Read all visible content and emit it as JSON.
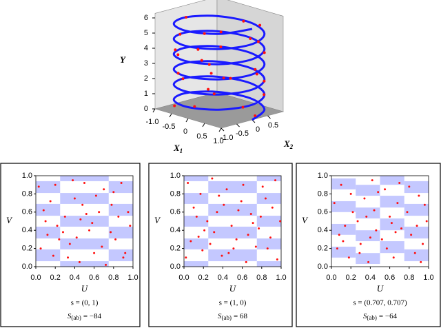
{
  "chart_data": [
    {
      "type": "helix3d",
      "axis_labels": {
        "y": "Y",
        "x1": "X",
        "x1_sub": "1",
        "x2": "X",
        "x2_sub": "2"
      },
      "x1lim": [
        -1,
        1
      ],
      "x2lim": [
        -1,
        1
      ],
      "ylim": [
        0,
        6.3
      ],
      "yticks": [
        0,
        1,
        2,
        3,
        4,
        5,
        6
      ],
      "x1ticks": [
        {
          "value": -1,
          "label": "-1.0"
        },
        -0.5,
        0,
        0.5,
        {
          "value": 1,
          "label": "1.0"
        }
      ],
      "x2ticks": [
        {
          "value": -1,
          "label": "-1.0"
        },
        -0.5,
        0,
        0.5
      ],
      "line": {
        "color": "#1a1aff",
        "x1": [
          1,
          0.707,
          0,
          -0.707,
          -1,
          -0.707,
          0,
          0.707,
          1,
          0.707,
          0,
          -0.707,
          -1,
          -0.707,
          0,
          0.707,
          1,
          0.707,
          0,
          -0.707,
          -1,
          -0.707,
          0,
          0.707,
          1,
          0.707,
          0,
          -0.707,
          -1,
          -0.707,
          0,
          0.707,
          1,
          0.707,
          0,
          -0.707,
          -1,
          -0.707,
          0,
          0.707,
          1,
          0.707,
          0,
          -0.707,
          -1,
          -0.707,
          0,
          0.707,
          1
        ],
        "x2": [
          0,
          0.707,
          1,
          0.707,
          0,
          -0.707,
          -1,
          -0.707,
          0,
          0.707,
          1,
          0.707,
          0,
          -0.707,
          -1,
          -0.707,
          0,
          0.707,
          1,
          0.707,
          0,
          -0.707,
          -1,
          -0.707,
          0,
          0.707,
          1,
          0.707,
          0,
          -0.707,
          -1,
          -0.707,
          0,
          0.707,
          1,
          0.707,
          0,
          -0.707,
          -1,
          -0.707,
          0,
          0.707,
          1,
          0.707,
          0,
          -0.707,
          -1,
          -0.707,
          0
        ],
        "y": [
          0,
          0.125,
          0.25,
          0.375,
          0.5,
          0.625,
          0.75,
          0.875,
          1,
          1.125,
          1.25,
          1.375,
          1.5,
          1.625,
          1.75,
          1.875,
          2,
          2.125,
          2.25,
          2.375,
          2.5,
          2.625,
          2.75,
          2.875,
          3,
          3.125,
          3.25,
          3.375,
          3.5,
          3.625,
          3.75,
          3.875,
          4,
          4.125,
          4.25,
          4.375,
          4.5,
          4.625,
          4.75,
          4.875,
          5,
          5.125,
          5.25,
          5.375,
          5.5,
          5.625,
          5.75,
          5.875,
          6
        ]
      },
      "points": {
        "color": "#ff1010",
        "x1": [
          0.9,
          -0.8,
          0.1,
          1.0,
          -0.5,
          -1.0,
          0.6,
          0.8,
          -0.9,
          0.2,
          -0.3,
          1.05,
          -0.7,
          -0.95,
          0.5,
          0.9,
          -0.6,
          -0.9,
          0.3,
          1.0,
          -0.2,
          -1.0,
          0.4,
          0.95,
          -0.6,
          0.7,
          -0.4,
          0.7,
          -0.8,
          0.1
        ],
        "x2": [
          0.2,
          0.5,
          -0.9,
          -0.3,
          0.9,
          -0.1,
          -0.8,
          0.6,
          0.4,
          0.95,
          -1.0,
          0.1,
          0.8,
          -0.4,
          -0.85,
          0.5,
          0.7,
          -0.3,
          -1.0,
          0.2,
          1.0,
          0.0,
          -0.9,
          0.3,
          -0.8,
          0.7,
          -0.9,
          -0.6,
          0.6,
          0.9
        ],
        "y": [
          0.1,
          0.6,
          0.8,
          1.0,
          1.3,
          1.5,
          1.9,
          2.1,
          2.5,
          2.3,
          2.8,
          3.0,
          3.3,
          3.6,
          3.8,
          4.1,
          4.4,
          4.6,
          4.75,
          5.05,
          5.2,
          5.5,
          5.8,
          6.05,
          0.35,
          1.1,
          3.9,
          2.9,
          1.6,
          4.3
        ]
      }
    },
    {
      "type": "scatter",
      "xlabel": "U",
      "ylabel": "V",
      "s_label": "s = (0, 1)",
      "stat": "S",
      "stat_sub": "(ab)",
      "stat_value": "= −84",
      "xlim": [
        0,
        1
      ],
      "ylim": [
        0,
        1
      ],
      "xticks": [
        {
          "value": 0,
          "label": "0.0"
        },
        0.2,
        0.4,
        0.6,
        0.8,
        {
          "value": 1,
          "label": "1.0"
        }
      ],
      "yticks": [
        {
          "value": 0,
          "label": "0.0"
        },
        0.2,
        0.4,
        0.6,
        0.8,
        {
          "value": 1,
          "label": "1.0"
        }
      ],
      "stripe_color": "#c4c8ff",
      "color": "#ff1010",
      "stripes": [
        {
          "x": [
            0,
            0.25
          ],
          "y": [
            [
              0.06,
              0.19
            ],
            [
              0.31,
              0.44
            ],
            [
              0.56,
              0.69
            ],
            [
              0.81,
              0.94
            ]
          ]
        },
        {
          "x": [
            0.25,
            0.75
          ],
          "y": [
            [
              0,
              0.06
            ],
            [
              0.19,
              0.31
            ],
            [
              0.44,
              0.56
            ],
            [
              0.69,
              0.81
            ],
            [
              0.94,
              1
            ]
          ]
        },
        {
          "x": [
            0.75,
            1
          ],
          "y": [
            [
              0.06,
              0.19
            ],
            [
              0.31,
              0.44
            ],
            [
              0.56,
              0.69
            ],
            [
              0.81,
              0.94
            ]
          ]
        }
      ],
      "x": [
        0.03,
        0.08,
        0.12,
        0.18,
        0.22,
        0.05,
        0.15,
        0.2,
        0.1,
        0.24,
        0.3,
        0.35,
        0.4,
        0.45,
        0.5,
        0.55,
        0.6,
        0.65,
        0.7,
        0.33,
        0.42,
        0.48,
        0.58,
        0.68,
        0.38,
        0.52,
        0.62,
        0.28,
        0.72,
        0.46,
        0.78,
        0.82,
        0.88,
        0.92,
        0.97,
        0.8,
        0.85,
        0.9,
        0.95,
        0.77
      ],
      "y": [
        0.88,
        0.62,
        0.35,
        0.12,
        0.45,
        0.2,
        0.72,
        0.9,
        0.5,
        0.3,
        0.55,
        0.25,
        0.75,
        0.05,
        0.92,
        0.4,
        0.15,
        0.6,
        0.85,
        0.1,
        0.32,
        0.68,
        0.48,
        0.22,
        0.95,
        0.58,
        0.78,
        0.38,
        0.02,
        0.52,
        0.68,
        0.3,
        0.92,
        0.15,
        0.45,
        0.82,
        0.55,
        0.1,
        0.6,
        0.38
      ]
    },
    {
      "type": "scatter",
      "xlabel": "U",
      "ylabel": "V",
      "s_label": "s = (1, 0)",
      "stat": "S",
      "stat_sub": "(ab)",
      "stat_value": "= 68",
      "xlim": [
        0,
        1
      ],
      "ylim": [
        0,
        1
      ],
      "xticks": [
        {
          "value": 0,
          "label": "0.0"
        },
        0.2,
        0.4,
        0.6,
        0.8,
        {
          "value": 1,
          "label": "1.0"
        }
      ],
      "yticks": [
        {
          "value": 0,
          "label": "0.0"
        },
        0.2,
        0.4,
        0.6,
        0.8,
        {
          "value": 1,
          "label": "1.0"
        }
      ],
      "stripe_color": "#c4c8ff",
      "color": "#ff1010",
      "stripes": [
        {
          "x": [
            0,
            0.25
          ],
          "y": [
            [
              0,
              0.06
            ],
            [
              0.19,
              0.31
            ],
            [
              0.44,
              0.56
            ],
            [
              0.69,
              0.81
            ],
            [
              0.94,
              1
            ]
          ]
        },
        {
          "x": [
            0.25,
            0.75
          ],
          "y": [
            [
              0.06,
              0.19
            ],
            [
              0.31,
              0.44
            ],
            [
              0.56,
              0.69
            ],
            [
              0.81,
              0.94
            ]
          ]
        },
        {
          "x": [
            0.75,
            1
          ],
          "y": [
            [
              0,
              0.06
            ],
            [
              0.19,
              0.31
            ],
            [
              0.44,
              0.56
            ],
            [
              0.69,
              0.81
            ],
            [
              0.94,
              1
            ]
          ]
        }
      ],
      "x": [
        0.02,
        0.07,
        0.13,
        0.17,
        0.21,
        0.1,
        0.04,
        0.19,
        0.24,
        0.15,
        0.29,
        0.34,
        0.39,
        0.44,
        0.49,
        0.54,
        0.59,
        0.64,
        0.69,
        0.74,
        0.31,
        0.41,
        0.51,
        0.61,
        0.71,
        0.36,
        0.46,
        0.56,
        0.66,
        0.27,
        0.77,
        0.81,
        0.86,
        0.91,
        0.96,
        0.79,
        0.84,
        0.89,
        0.94,
        0.99
      ],
      "y": [
        0.1,
        0.28,
        0.55,
        0.8,
        0.4,
        0.65,
        0.92,
        0.18,
        0.5,
        0.33,
        0.97,
        0.6,
        0.12,
        0.85,
        0.45,
        0.3,
        0.72,
        0.05,
        0.58,
        0.22,
        0.38,
        0.68,
        0.2,
        0.9,
        0.48,
        0.78,
        0.15,
        0.62,
        0.35,
        0.25,
        0.42,
        0.88,
        0.2,
        0.65,
        0.08,
        0.55,
        0.75,
        0.32,
        0.95,
        0.5
      ]
    },
    {
      "type": "scatter",
      "xlabel": "U",
      "ylabel": "V",
      "s_label": "s = (0.707, 0.707)",
      "stat": "S",
      "stat_sub": "(ab)",
      "stat_value": "= −64",
      "xlim": [
        0,
        1
      ],
      "ylim": [
        0,
        1
      ],
      "xticks": [
        {
          "value": 0,
          "label": "0.0"
        },
        0.2,
        0.4,
        0.6,
        0.8,
        {
          "value": 1,
          "label": "1.0"
        }
      ],
      "yticks": [
        {
          "value": 0,
          "label": "0.0"
        },
        0.2,
        0.4,
        0.6,
        0.8,
        {
          "value": 1,
          "label": "1.0"
        }
      ],
      "stripe_color": "#c4c8ff",
      "color": "#ff1010",
      "stripes": [
        {
          "x": [
            0,
            0.25
          ],
          "y": [
            [
              0.1,
              0.22
            ],
            [
              0.35,
              0.47
            ],
            [
              0.6,
              0.72
            ],
            [
              0.85,
              0.97
            ]
          ]
        },
        {
          "x": [
            0.25,
            0.5
          ],
          "y": [
            [
              0.03,
              0.15
            ],
            [
              0.28,
              0.4
            ],
            [
              0.53,
              0.65
            ],
            [
              0.78,
              0.9
            ]
          ]
        },
        {
          "x": [
            0.5,
            0.75
          ],
          "y": [
            [
              0.15,
              0.28
            ],
            [
              0.4,
              0.53
            ],
            [
              0.65,
              0.78
            ],
            [
              0.9,
              1
            ]
          ]
        },
        {
          "x": [
            0.75,
            1
          ],
          "y": [
            [
              0.06,
              0.19
            ],
            [
              0.31,
              0.44
            ],
            [
              0.56,
              0.69
            ],
            [
              0.81,
              0.94
            ]
          ]
        }
      ],
      "x": [
        0.03,
        0.06,
        0.1,
        0.14,
        0.18,
        0.22,
        0.08,
        0.2,
        0.27,
        0.3,
        0.34,
        0.38,
        0.42,
        0.46,
        0.29,
        0.44,
        0.52,
        0.55,
        0.6,
        0.64,
        0.68,
        0.72,
        0.57,
        0.7,
        0.62,
        0.48,
        0.78,
        0.82,
        0.86,
        0.9,
        0.94,
        0.98,
        0.8,
        0.88,
        0.96,
        0.36,
        0.12,
        0.66,
        0.92,
        0.4
      ],
      "y": [
        0.7,
        0.2,
        0.9,
        0.45,
        0.1,
        0.6,
        0.35,
        0.8,
        0.5,
        0.25,
        0.75,
        0.05,
        0.95,
        0.4,
        0.15,
        0.62,
        0.3,
        0.85,
        0.55,
        0.1,
        0.7,
        0.42,
        0.2,
        0.92,
        0.48,
        0.82,
        0.6,
        0.35,
        0.15,
        0.78,
        0.25,
        0.5,
        0.88,
        0.45,
        0.68,
        0.55,
        0.28,
        0.38,
        0.05,
        0.32
      ]
    }
  ]
}
